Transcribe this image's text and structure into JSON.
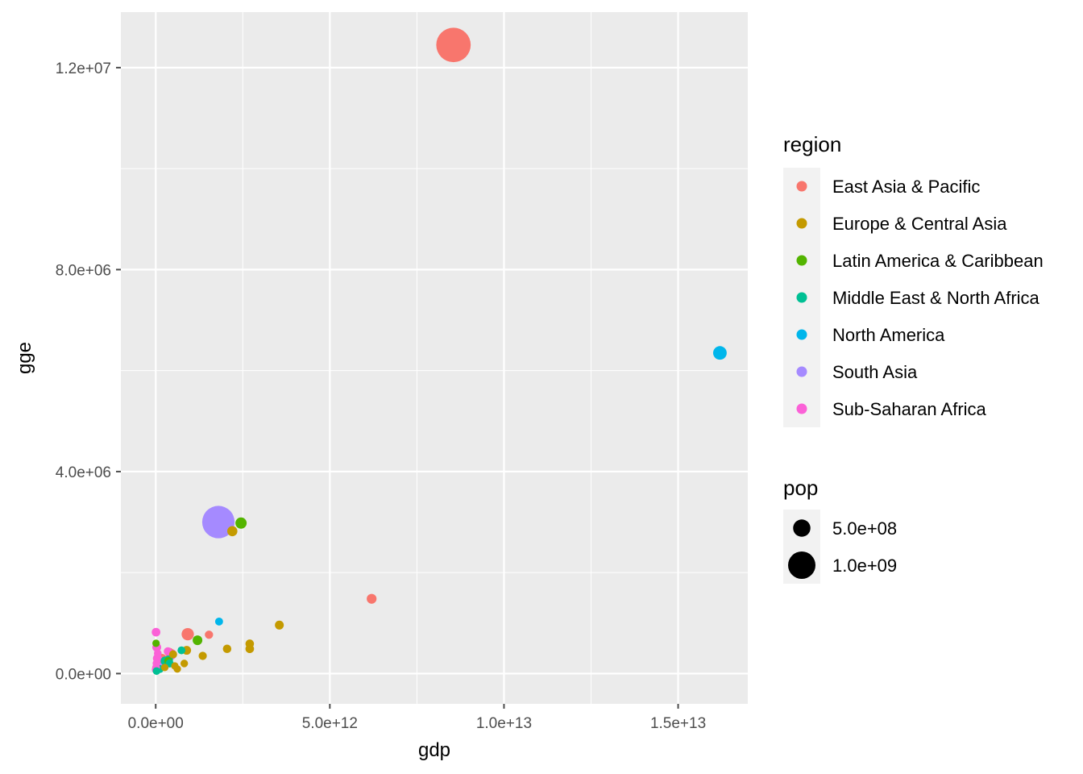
{
  "colors": {
    "panel": "#EBEBEB",
    "grid": "#FFFFFF",
    "tick": "#4d4d4d"
  },
  "chart_data": {
    "type": "scatter",
    "title": "",
    "xlabel": "gdp",
    "ylabel": "gge",
    "xlim": [
      -1000000000000.0,
      17000000000000.0
    ],
    "ylim": [
      -600000,
      13100000
    ],
    "x_ticks": [
      {
        "value": 0,
        "label": "0.0e+00"
      },
      {
        "value": 5000000000000.0,
        "label": "5.0e+12"
      },
      {
        "value": 10000000000000.0,
        "label": "1.0e+13"
      },
      {
        "value": 15000000000000.0,
        "label": "1.5e+13"
      }
    ],
    "y_ticks": [
      {
        "value": 0,
        "label": "0.0e+00"
      },
      {
        "value": 4000000,
        "label": "4.0e+06"
      },
      {
        "value": 8000000,
        "label": "8.0e+06"
      },
      {
        "value": 12000000,
        "label": "1.2e+07"
      }
    ],
    "x_minor": [
      2500000000000.0,
      7500000000000.0,
      12500000000000.0
    ],
    "y_minor": [
      2000000,
      6000000,
      10000000
    ],
    "color_legend": {
      "title": "region",
      "entries": [
        {
          "label": "East Asia & Pacific",
          "color": "#F8766D"
        },
        {
          "label": "Europe & Central Asia",
          "color": "#C49A00"
        },
        {
          "label": "Latin America & Caribbean",
          "color": "#53B400"
        },
        {
          "label": "Middle East & North Africa",
          "color": "#00C094"
        },
        {
          "label": "North America",
          "color": "#00B6EB"
        },
        {
          "label": "South Asia",
          "color": "#A58AFF"
        },
        {
          "label": "Sub-Saharan Africa",
          "color": "#FB61D7"
        }
      ]
    },
    "size_legend": {
      "title": "pop",
      "entries": [
        {
          "label": "5.0e+08",
          "value": 500000000
        },
        {
          "label": "1.0e+09",
          "value": 1000000000
        }
      ]
    },
    "points": [
      {
        "region": "East Asia & Pacific",
        "gdp": 8550000000000.0,
        "gge": 12450000,
        "pop": 1350000000
      },
      {
        "region": "East Asia & Pacific",
        "gdp": 6200000000000.0,
        "gge": 1480000,
        "pop": 127000000
      },
      {
        "region": "East Asia & Pacific",
        "gdp": 920000000000.0,
        "gge": 780000,
        "pop": 250000000
      },
      {
        "region": "East Asia & Pacific",
        "gdp": 1530000000000.0,
        "gge": 770000,
        "pop": 50000000
      },
      {
        "region": "East Asia & Pacific",
        "gdp": 390000000000.0,
        "gge": 420000,
        "pop": 90000000
      },
      {
        "region": "East Asia & Pacific",
        "gdp": 180000000000.0,
        "gge": 300000,
        "pop": 95000000
      },
      {
        "region": "North America",
        "gdp": 16200000000000.0,
        "gge": 6350000,
        "pop": 315000000
      },
      {
        "region": "North America",
        "gdp": 1820000000000.0,
        "gge": 1030000,
        "pop": 35000000
      },
      {
        "region": "South Asia",
        "gdp": 1800000000000.0,
        "gge": 3000000,
        "pop": 1250000000
      },
      {
        "region": "South Asia",
        "gdp": 230000000000.0,
        "gge": 200000,
        "pop": 180000000
      },
      {
        "region": "Latin America & Caribbean",
        "gdp": 2450000000000.0,
        "gge": 2980000,
        "pop": 200000000
      },
      {
        "region": "Latin America & Caribbean",
        "gdp": 1200000000000.0,
        "gge": 660000,
        "pop": 120000000
      },
      {
        "region": "Latin America & Caribbean",
        "gdp": 360000000000.0,
        "gge": 250000,
        "pop": 42000000
      },
      {
        "region": "Latin America & Caribbean",
        "gdp": 10000000000.0,
        "gge": 600000,
        "pop": 10000000
      },
      {
        "region": "Europe & Central Asia",
        "gdp": 2200000000000.0,
        "gge": 2820000,
        "pop": 143000000
      },
      {
        "region": "Europe & Central Asia",
        "gdp": 3550000000000.0,
        "gge": 960000,
        "pop": 81000000
      },
      {
        "region": "Europe & Central Asia",
        "gdp": 2700000000000.0,
        "gge": 590000,
        "pop": 64000000
      },
      {
        "region": "Europe & Central Asia",
        "gdp": 2700000000000.0,
        "gge": 490000,
        "pop": 66000000
      },
      {
        "region": "Europe & Central Asia",
        "gdp": 2050000000000.0,
        "gge": 490000,
        "pop": 60000000
      },
      {
        "region": "Europe & Central Asia",
        "gdp": 1350000000000.0,
        "gge": 350000,
        "pop": 47000000
      },
      {
        "region": "Europe & Central Asia",
        "gdp": 890000000000.0,
        "gge": 460000,
        "pop": 75000000
      },
      {
        "region": "Europe & Central Asia",
        "gdp": 820000000000.0,
        "gge": 200000,
        "pop": 17000000
      },
      {
        "region": "Europe & Central Asia",
        "gdp": 620000000000.0,
        "gge": 90000,
        "pop": 10000000
      },
      {
        "region": "Europe & Central Asia",
        "gdp": 500000000000.0,
        "gge": 380000,
        "pop": 40000000
      },
      {
        "region": "Europe & Central Asia",
        "gdp": 550000000000.0,
        "gge": 150000,
        "pop": 9500000
      },
      {
        "region": "Europe & Central Asia",
        "gdp": 260000000000.0,
        "gge": 120000,
        "pop": 10000000
      },
      {
        "region": "Middle East & North Africa",
        "gdp": 370000000000.0,
        "gge": 270000,
        "pop": 77000000
      },
      {
        "region": "Middle East & North Africa",
        "gdp": 740000000000.0,
        "gge": 460000,
        "pop": 29000000
      },
      {
        "region": "Middle East & North Africa",
        "gdp": 400000000000.0,
        "gge": 200000,
        "pop": 37000000
      },
      {
        "region": "Middle East & North Africa",
        "gdp": 270000000000.0,
        "gge": 250000,
        "pop": 85000000
      },
      {
        "region": "Middle East & North Africa",
        "gdp": 25000000000.0,
        "gge": 50000,
        "pop": 22000000
      },
      {
        "region": "Middle East & North Africa",
        "gdp": 120000000000.0,
        "gge": 90000,
        "pop": 30000000
      },
      {
        "region": "Sub-Saharan Africa",
        "gdp": 450000000000.0,
        "gge": 380000,
        "pop": 170000000
      },
      {
        "region": "Sub-Saharan Africa",
        "gdp": 350000000000.0,
        "gge": 440000,
        "pop": 52000000
      },
      {
        "region": "Sub-Saharan Africa",
        "gdp": 10000000000.0,
        "gge": 820000,
        "pop": 70000000
      },
      {
        "region": "Sub-Saharan Africa",
        "gdp": 30000000000.0,
        "gge": 520000,
        "pop": 80000000
      },
      {
        "region": "Sub-Saharan Africa",
        "gdp": 50000000000.0,
        "gge": 300000,
        "pop": 90000000
      },
      {
        "region": "Sub-Saharan Africa",
        "gdp": 10000000000.0,
        "gge": 120000,
        "pop": 30000000
      },
      {
        "region": "Sub-Saharan Africa",
        "gdp": 5000000000.0,
        "gge": 80000,
        "pop": 45000000
      },
      {
        "region": "Sub-Saharan Africa",
        "gdp": 60000000000.0,
        "gge": 400000,
        "pop": 25000000
      },
      {
        "region": "Sub-Saharan Africa",
        "gdp": 20000000000.0,
        "gge": 200000,
        "pop": 20000000
      }
    ]
  }
}
